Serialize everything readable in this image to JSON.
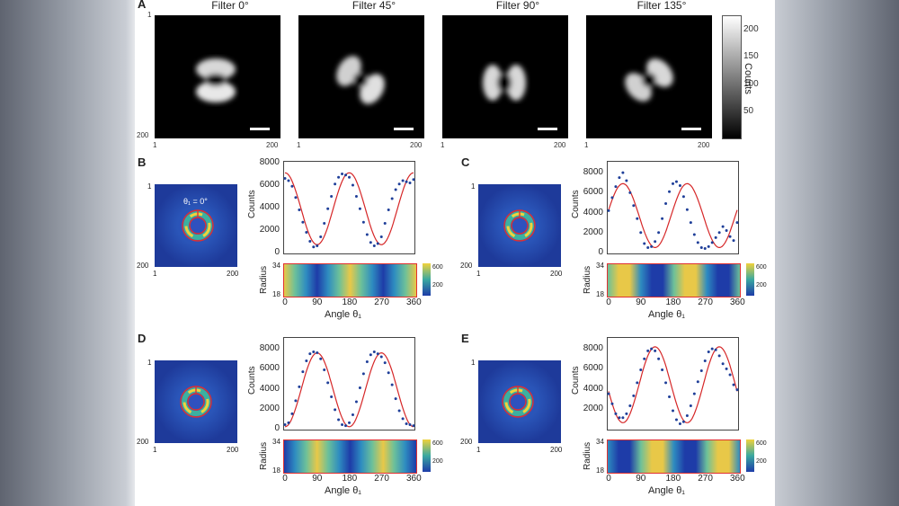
{
  "panels": {
    "A": {
      "letter": "A",
      "filters": [
        "Filter 0°",
        "Filter 45°",
        "Filter 90°",
        "Filter 135°"
      ],
      "axis_ticks": {
        "top": "1",
        "bottom": "200",
        "left": "1",
        "right": "200"
      },
      "colorbar": {
        "label": "Counts",
        "ticks": [
          "200",
          "150",
          "100",
          "50"
        ],
        "colors": [
          "#ffffff",
          "#000000"
        ]
      }
    },
    "B": {
      "letter": "B",
      "annotation": "θ₁ = 0°"
    },
    "C": {
      "letter": "C"
    },
    "D": {
      "letter": "D"
    },
    "E": {
      "letter": "E"
    },
    "ring_ticks": {
      "top": "1",
      "bottom": "200",
      "left": "1",
      "right": "200"
    },
    "counts_label": "Counts",
    "radius_label": "Radius",
    "radius_ticks": [
      "34",
      "18"
    ],
    "map_colorbar_ticks": [
      "600",
      "200"
    ],
    "angle_ticks": [
      "0",
      "90",
      "180",
      "270",
      "360"
    ],
    "angle_labels": {
      "B": "Angle θ₁",
      "C": "Angle θ₁",
      "D": "Angle θ₁",
      "E": "Angle θ₁"
    },
    "colors": {
      "fit": "#d62728",
      "data": "#1f3f99",
      "ring": "#e03030",
      "map_low": "#1e3ca8",
      "map_high": "#f0d23c"
    }
  },
  "chart_data": [
    {
      "panel": "B",
      "type": "scatter",
      "xlabel": "Angle θ₁",
      "ylabel": "Counts",
      "xlim": [
        0,
        360
      ],
      "ylim": [
        0,
        8000
      ],
      "yticks": [
        "0",
        "2000",
        "4000",
        "6000",
        "8000"
      ],
      "x": [
        0,
        10,
        20,
        30,
        40,
        50,
        60,
        70,
        80,
        90,
        100,
        110,
        120,
        130,
        140,
        150,
        160,
        170,
        180,
        190,
        200,
        210,
        220,
        230,
        240,
        250,
        260,
        270,
        280,
        290,
        300,
        310,
        320,
        330,
        340,
        350,
        360
      ],
      "y": [
        6600,
        6400,
        5900,
        4900,
        3800,
        2700,
        1800,
        1000,
        500,
        600,
        1400,
        2600,
        3900,
        5000,
        6100,
        6700,
        7000,
        6900,
        6700,
        6000,
        5000,
        3900,
        2700,
        1600,
        900,
        600,
        800,
        1400,
        2600,
        3800,
        4800,
        5600,
        6100,
        6400,
        6300,
        6200,
        6500
      ],
      "fit": {
        "amplitude": 3200,
        "offset": 3900,
        "phase_deg": 0
      }
    },
    {
      "panel": "C",
      "type": "scatter",
      "xlabel": "Angle θ₁",
      "ylabel": "Counts",
      "xlim": [
        0,
        360
      ],
      "ylim": [
        0,
        9000
      ],
      "yticks": [
        "0",
        "2000",
        "4000",
        "6000",
        "8000"
      ],
      "x": [
        0,
        10,
        20,
        30,
        40,
        50,
        60,
        70,
        80,
        90,
        100,
        110,
        120,
        130,
        140,
        150,
        160,
        170,
        180,
        190,
        200,
        210,
        220,
        230,
        240,
        250,
        260,
        270,
        280,
        290,
        300,
        310,
        320,
        330,
        340,
        350,
        360
      ],
      "y": [
        4200,
        5500,
        6600,
        7500,
        8000,
        7200,
        6000,
        4700,
        3400,
        2000,
        900,
        500,
        600,
        1100,
        2000,
        3400,
        4900,
        6100,
        6900,
        7100,
        6700,
        5600,
        4300,
        3000,
        1800,
        1000,
        500,
        400,
        600,
        1000,
        1500,
        2000,
        2600,
        2200,
        1600,
        1200,
        3000
      ],
      "fit": {
        "amplitude": 3200,
        "offset": 3700,
        "phase_deg": 40
      }
    },
    {
      "panel": "D",
      "type": "scatter",
      "xlabel": "Angle θ₁",
      "ylabel": "Counts",
      "xlim": [
        0,
        360
      ],
      "ylim": [
        0,
        9000
      ],
      "yticks": [
        "0",
        "2000",
        "4000",
        "6000",
        "8000"
      ],
      "x": [
        0,
        10,
        20,
        30,
        40,
        50,
        60,
        70,
        80,
        90,
        100,
        110,
        120,
        130,
        140,
        150,
        160,
        170,
        180,
        190,
        200,
        210,
        220,
        230,
        240,
        250,
        260,
        270,
        280,
        290,
        300,
        310,
        320,
        330,
        340,
        350,
        360
      ],
      "y": [
        400,
        600,
        1500,
        2800,
        4200,
        5700,
        6800,
        7500,
        7700,
        7600,
        7000,
        5900,
        4600,
        3200,
        1900,
        900,
        400,
        300,
        600,
        1400,
        2700,
        4100,
        5500,
        6700,
        7400,
        7700,
        7500,
        7200,
        6600,
        5600,
        4400,
        3000,
        1800,
        1000,
        500,
        400,
        300
      ],
      "fit": {
        "amplitude": 3700,
        "offset": 3900,
        "phase_deg": 90
      }
    },
    {
      "panel": "E",
      "type": "scatter",
      "xlabel": "Angle θ₁",
      "ylabel": "Counts",
      "xlim": [
        0,
        360
      ],
      "ylim": [
        0,
        9000
      ],
      "yticks": [
        "2000",
        "4000",
        "6000",
        "8000"
      ],
      "x": [
        0,
        10,
        20,
        30,
        40,
        50,
        60,
        70,
        80,
        90,
        100,
        110,
        120,
        130,
        140,
        150,
        160,
        170,
        180,
        190,
        200,
        210,
        220,
        230,
        240,
        250,
        260,
        270,
        280,
        290,
        300,
        310,
        320,
        330,
        340,
        350,
        360
      ],
      "y": [
        3500,
        2500,
        1500,
        1100,
        1100,
        1500,
        2300,
        3300,
        4600,
        5900,
        7000,
        7800,
        8000,
        7800,
        7000,
        5900,
        4600,
        3200,
        1800,
        900,
        500,
        700,
        1300,
        2300,
        3500,
        4700,
        5800,
        6800,
        7700,
        8000,
        7900,
        7300,
        6500,
        6000,
        5400,
        4400,
        3900
      ],
      "fit": {
        "amplitude": 3800,
        "offset": 4400,
        "phase_deg": 130
      }
    }
  ]
}
